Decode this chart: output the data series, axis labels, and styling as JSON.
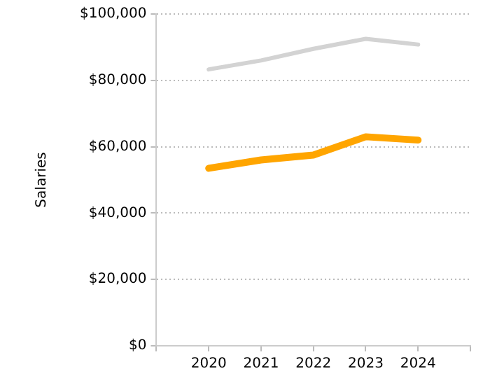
{
  "chart_data": {
    "type": "line",
    "ylabel": "Salaries",
    "x": [
      2020,
      2021,
      2022,
      2023,
      2024
    ],
    "xlim": [
      2019,
      2025
    ],
    "xticks": [
      {
        "value": 2019,
        "label": null
      },
      2020,
      2021,
      2022,
      2023,
      2024,
      {
        "value": 2025,
        "label": null
      }
    ],
    "ylim": [
      0,
      100000
    ],
    "yticks": [
      {
        "value": 0,
        "label": "$0"
      },
      {
        "value": 20000,
        "label": "$20,000"
      },
      {
        "value": 40000,
        "label": "$40,000"
      },
      {
        "value": 60000,
        "label": "$60,000"
      },
      {
        "value": 80000,
        "label": "$80,000"
      },
      {
        "value": 100000,
        "label": "$100,000"
      }
    ],
    "series": [
      {
        "color": "#d3d3d3",
        "values": [
          83300,
          86000,
          89500,
          92500,
          90800
        ]
      },
      {
        "color": "#ffa500",
        "values": [
          53500,
          56000,
          57500,
          63000,
          62000
        ]
      }
    ],
    "grid": "y",
    "legend": false,
    "marker": "none",
    "line_style": "solid"
  }
}
